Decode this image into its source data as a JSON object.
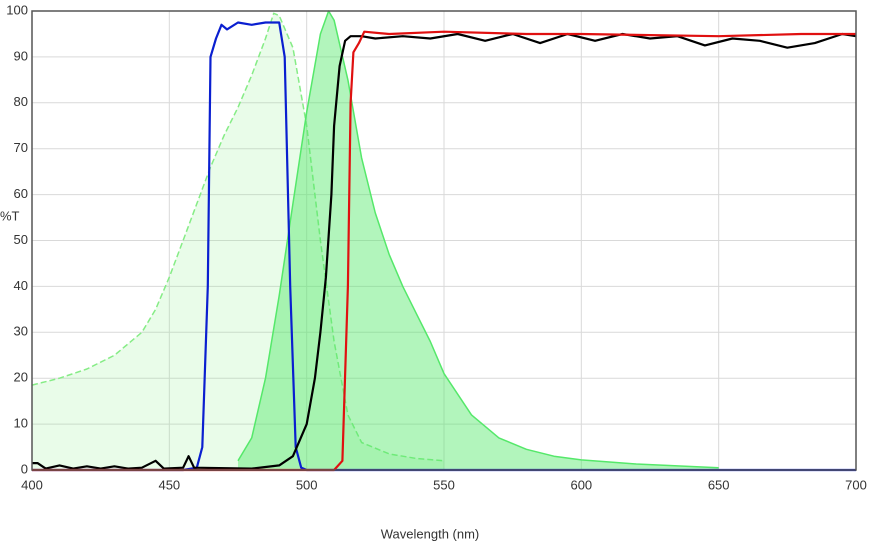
{
  "chart_data": {
    "type": "line",
    "x_label": "Wavelength (nm)",
    "y_label": "%T",
    "xlim": [
      400,
      700
    ],
    "ylim": [
      0,
      100
    ],
    "xticks": [
      400,
      450,
      500,
      550,
      600,
      650,
      700
    ],
    "yticks": [
      0,
      10,
      20,
      30,
      40,
      50,
      60,
      70,
      80,
      90,
      100
    ],
    "grid": true,
    "series": [
      {
        "color": "#86ec86",
        "fill": true,
        "dashed": true,
        "x": [
          400,
          410,
          420,
          430,
          440,
          445,
          450,
          455,
          460,
          465,
          470,
          475,
          480,
          485,
          488,
          490,
          495,
          500,
          505,
          510,
          515,
          520,
          530,
          540,
          550
        ],
        "values": [
          18.5,
          20,
          22,
          25,
          30,
          35,
          42,
          50,
          58,
          66,
          73,
          79,
          86,
          94,
          99.5,
          99,
          92,
          75,
          50,
          28,
          12,
          6,
          3.5,
          2.5,
          2
        ]
      },
      {
        "color": "#55e86a",
        "fill": true,
        "dashed": false,
        "x": [
          475,
          480,
          485,
          490,
          495,
          500,
          505,
          508,
          510,
          515,
          520,
          525,
          530,
          535,
          540,
          545,
          550,
          560,
          570,
          580,
          590,
          600,
          620,
          650
        ],
        "values": [
          2,
          7,
          20,
          38,
          58,
          78,
          95,
          100,
          98,
          85,
          68,
          56,
          47,
          40,
          34,
          28,
          21,
          12,
          7,
          4.5,
          3,
          2.2,
          1.3,
          0.5
        ]
      },
      {
        "color": "#0a1fd0",
        "fill": false,
        "dashed": false,
        "x": [
          400,
          455,
          460,
          462,
          464,
          465,
          467,
          469,
          471,
          475,
          480,
          485,
          490,
          492,
          494,
          496,
          498,
          500,
          700
        ],
        "values": [
          0,
          0,
          0.5,
          5,
          40,
          90,
          94,
          97,
          96,
          97.5,
          97,
          97.5,
          97.5,
          90,
          40,
          5,
          0.5,
          0,
          0
        ]
      },
      {
        "color": "#000000",
        "fill": false,
        "dashed": false,
        "x": [
          400,
          402,
          405,
          410,
          415,
          420,
          425,
          430,
          435,
          440,
          445,
          448,
          455,
          457,
          459,
          480,
          490,
          495,
          500,
          503,
          505,
          507,
          509,
          510,
          512,
          514,
          516,
          520,
          525,
          535,
          545,
          555,
          565,
          575,
          585,
          595,
          605,
          615,
          625,
          635,
          645,
          655,
          665,
          675,
          685,
          695,
          700
        ],
        "values": [
          1.5,
          1.5,
          0.3,
          1,
          0.3,
          0.8,
          0.3,
          0.8,
          0.3,
          0.5,
          2,
          0.3,
          0.5,
          3,
          0.5,
          0.3,
          1,
          3,
          10,
          20,
          30,
          42,
          60,
          75,
          88,
          93.5,
          94.5,
          94.5,
          94,
          94.5,
          94,
          95,
          93.5,
          95,
          93,
          95,
          93.5,
          95,
          94,
          94.5,
          92.5,
          94,
          93.5,
          92,
          93,
          95,
          94.5
        ]
      },
      {
        "color": "#e01010",
        "fill": false,
        "dashed": false,
        "x": [
          400,
          510,
          513,
          515,
          516,
          517,
          519,
          521,
          530,
          550,
          580,
          600,
          650,
          680,
          700
        ],
        "values": [
          0,
          0,
          2,
          40,
          80,
          91,
          93,
          95.5,
          95,
          95.5,
          95,
          95,
          94.5,
          95,
          95
        ]
      }
    ]
  }
}
